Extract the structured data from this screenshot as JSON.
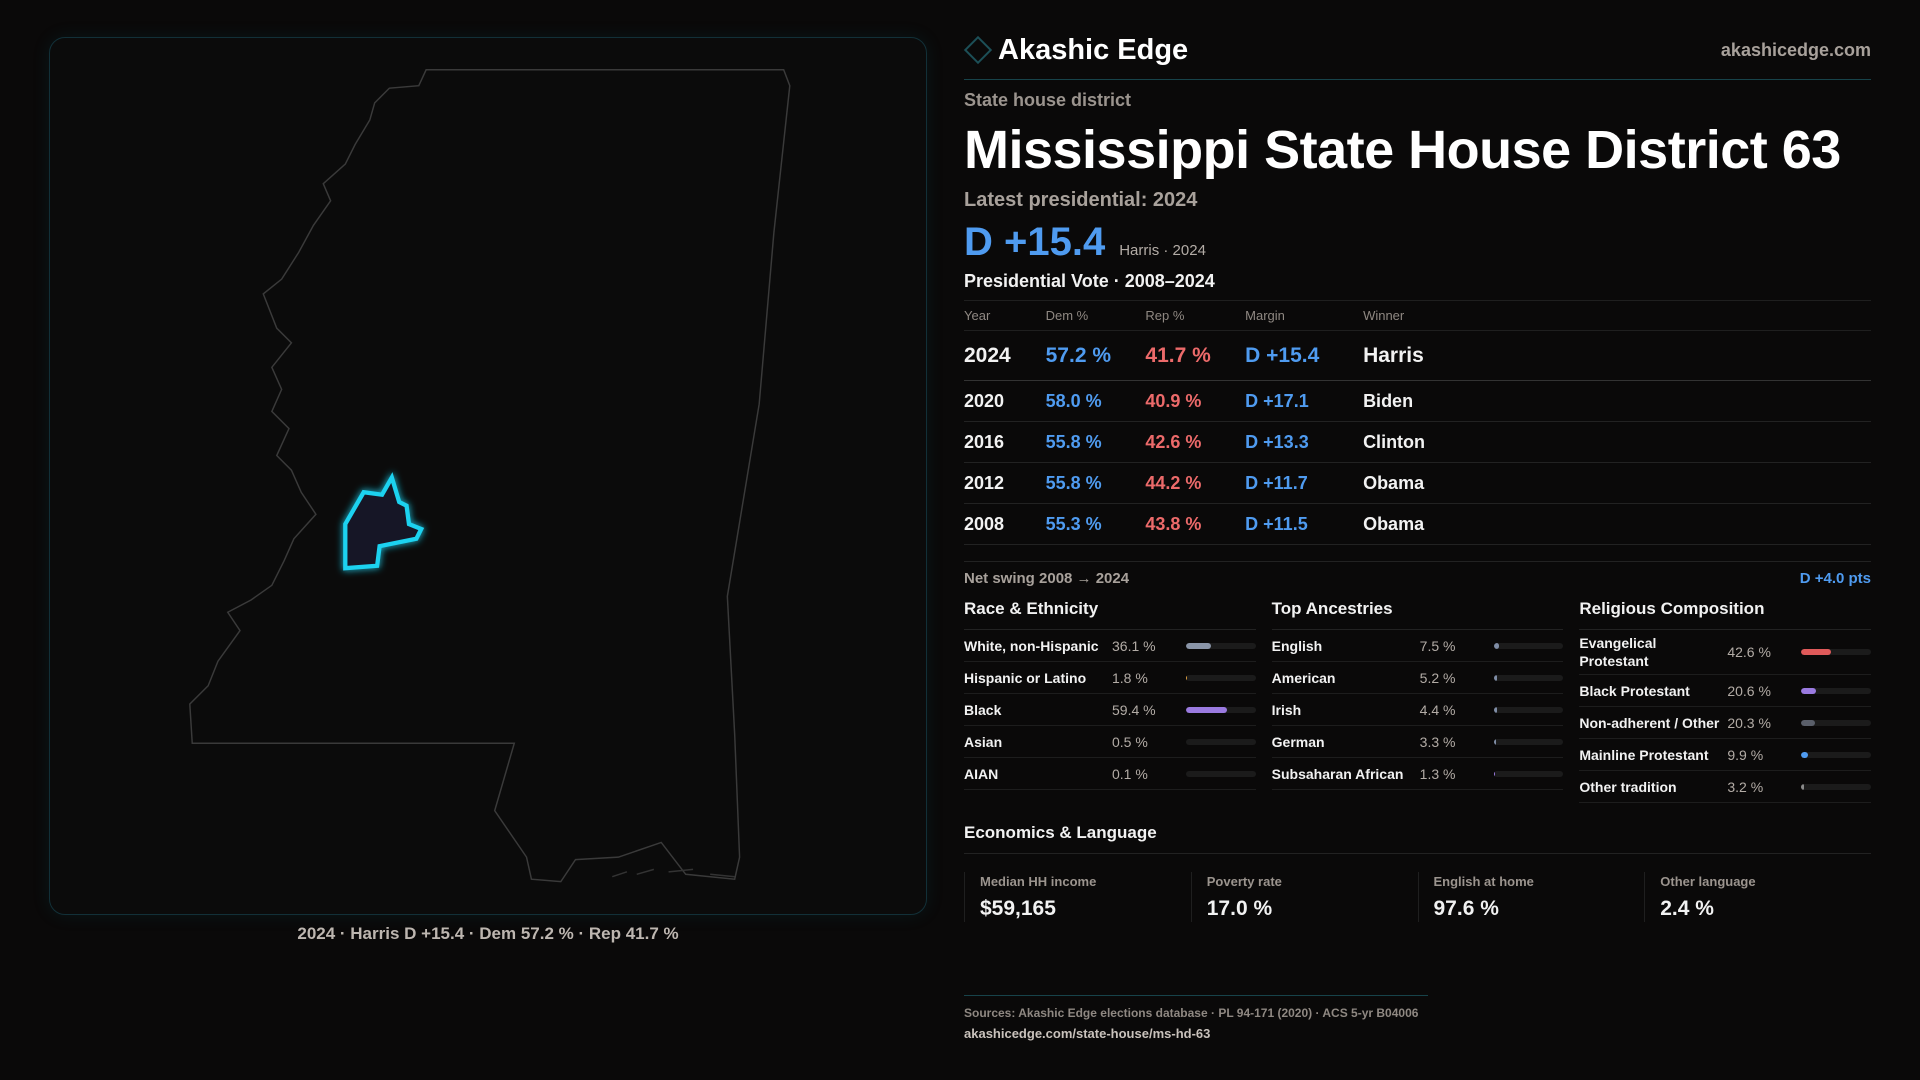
{
  "brand": {
    "name": "Akashic Edge",
    "site": "akashicedge.com"
  },
  "kicker": "State house district",
  "title": "Mississippi State House District 63",
  "latest_label": "Latest presidential: 2024",
  "headline": {
    "margin": "D +15.4",
    "sub": "Harris · 2024"
  },
  "table": {
    "title": "Presidential Vote · 2008–2024",
    "headers": [
      "Year",
      "Dem %",
      "Rep %",
      "Margin",
      "Winner"
    ],
    "rows": [
      [
        "2024",
        "57.2 %",
        "41.7 %",
        "D +15.4",
        "Harris"
      ],
      [
        "2020",
        "58.0 %",
        "40.9 %",
        "D +17.1",
        "Biden"
      ],
      [
        "2016",
        "55.8 %",
        "42.6 %",
        "D +13.3",
        "Clinton"
      ],
      [
        "2012",
        "55.8 %",
        "44.2 %",
        "D +11.7",
        "Obama"
      ],
      [
        "2008",
        "55.3 %",
        "43.8 %",
        "D +11.5",
        "Obama"
      ]
    ]
  },
  "swing": {
    "label": "Net swing 2008 → 2024",
    "value": "D +4.0 pts"
  },
  "race": {
    "title": "Race & Ethnicity",
    "items": [
      {
        "label": "White, non-Hispanic",
        "pct": "36.1 %",
        "value": 36.1,
        "color": "#8a95a8"
      },
      {
        "label": "Hispanic or Latino",
        "pct": "1.8 %",
        "value": 1.8,
        "color": "#e0a040"
      },
      {
        "label": "Black",
        "pct": "59.4 %",
        "value": 59.4,
        "color": "#9a7ae0"
      },
      {
        "label": "Asian",
        "pct": "0.5 %",
        "value": 0.5,
        "color": "#5cc0a0"
      },
      {
        "label": "AIAN",
        "pct": "0.1 %",
        "value": 0.1,
        "color": "#c08060"
      }
    ]
  },
  "ancestry": {
    "title": "Top Ancestries",
    "items": [
      {
        "label": "English",
        "pct": "7.5 %",
        "value": 7.5,
        "color": "#7f8da6"
      },
      {
        "label": "American",
        "pct": "5.2 %",
        "value": 5.2,
        "color": "#7f8da6"
      },
      {
        "label": "Irish",
        "pct": "4.4 %",
        "value": 4.4,
        "color": "#7f8da6"
      },
      {
        "label": "German",
        "pct": "3.3 %",
        "value": 3.3,
        "color": "#7f8da6"
      },
      {
        "label": "Subsaharan African",
        "pct": "1.3 %",
        "value": 1.3,
        "color": "#9a7ae0"
      }
    ]
  },
  "religion": {
    "title": "Religious Composition",
    "items": [
      {
        "label": "Evangelical Protestant",
        "pct": "42.6 %",
        "value": 42.6,
        "color": "#e05a5a"
      },
      {
        "label": "Black Protestant",
        "pct": "20.6 %",
        "value": 20.6,
        "color": "#9a7ae0"
      },
      {
        "label": "Non-adherent / Other",
        "pct": "20.3 %",
        "value": 20.3,
        "color": "#5a5f6a"
      },
      {
        "label": "Mainline Protestant",
        "pct": "9.9 %",
        "value": 9.9,
        "color": "#4f9bf0"
      },
      {
        "label": "Other tradition",
        "pct": "3.2 %",
        "value": 3.2,
        "color": "#8a8a8a"
      }
    ]
  },
  "econ": {
    "title": "Economics & Language",
    "tiles": [
      {
        "label": "Median HH income",
        "value": "$59,165"
      },
      {
        "label": "Poverty rate",
        "value": "17.0 %"
      },
      {
        "label": "English at home",
        "value": "97.6 %"
      },
      {
        "label": "Other language",
        "value": "2.4 %"
      }
    ]
  },
  "map_caption": "2024 · Harris D +15.4 · Dem 57.2 % · Rep 41.7 %",
  "footer": {
    "sources": "Sources: Akashic Edge elections database · PL 94-171 (2020) · ACS 5-yr B04006",
    "url": "akashicedge.com/state-house/ms-hd-63"
  },
  "colors": {
    "dem": "#4f9bf0",
    "rep": "#ec6a6a",
    "district": "#1ed2f0"
  }
}
